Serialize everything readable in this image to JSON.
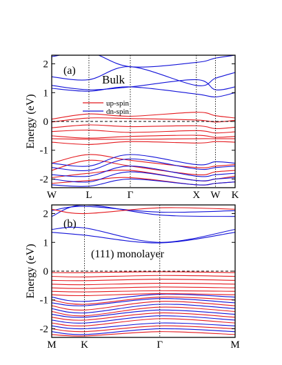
{
  "chart_data": [
    {
      "type": "line",
      "panel_label": "(a)",
      "title": "Bulk",
      "ylabel": "Energy (eV)",
      "ylim": [
        -2.3,
        2.3
      ],
      "yticks": [
        -2,
        -1,
        0,
        1,
        2
      ],
      "xlim": [
        0,
        7
      ],
      "kpoints": [
        {
          "label": "W",
          "x": 0
        },
        {
          "label": "L",
          "x": 1.42
        },
        {
          "label": "Γ",
          "x": 3.0
        },
        {
          "label": "X",
          "x": 5.52
        },
        {
          "label": "W",
          "x": 6.25
        },
        {
          "label": "K",
          "x": 7.0
        }
      ],
      "fermi_level": 0,
      "legend": {
        "placement": "upper-center",
        "entries": [
          {
            "name": "up-spin",
            "color": "#e4161b"
          },
          {
            "name": "dn-spin",
            "color": "#1010d8"
          }
        ]
      },
      "series": [
        {
          "name": "up-spin",
          "color": "#e4161b",
          "bands": [
            {
              "x": [
                0,
                1.42,
                3.0,
                5.52,
                6.25,
                7.0
              ],
              "y": [
                0.08,
                0.26,
                0.18,
                0.32,
                0.2,
                0.12
              ]
            },
            {
              "x": [
                0,
                1.42,
                3.0,
                5.52,
                6.25,
                7.0
              ],
              "y": [
                -0.02,
                0.12,
                0.1,
                0.05,
                -0.02,
                0.04
              ]
            },
            {
              "x": [
                0,
                1.42,
                3.0,
                5.52,
                6.25,
                7.0
              ],
              "y": [
                -0.22,
                -0.12,
                -0.18,
                -0.15,
                -0.25,
                -0.2
              ]
            },
            {
              "x": [
                0,
                1.42,
                3.0,
                5.52,
                6.25,
                7.0
              ],
              "y": [
                -0.35,
                -0.3,
                -0.38,
                -0.32,
                -0.4,
                -0.36
              ]
            },
            {
              "x": [
                0,
                1.42,
                3.0,
                5.52,
                6.25,
                7.0
              ],
              "y": [
                -0.5,
                -0.58,
                -0.52,
                -0.48,
                -0.55,
                -0.52
              ]
            },
            {
              "x": [
                0,
                1.42,
                3.0,
                5.52,
                6.25,
                7.0
              ],
              "y": [
                -0.6,
                -0.62,
                -0.62,
                -0.6,
                -0.6,
                -0.6
              ]
            },
            {
              "x": [
                0,
                1.42,
                3.0,
                5.52,
                6.25,
                7.0
              ],
              "y": [
                -0.72,
                -0.8,
                -0.7,
                -0.75,
                -0.7,
                -0.72
              ]
            },
            {
              "x": [
                0,
                1.42,
                3.0,
                5.52,
                6.25,
                7.0
              ],
              "y": [
                -1.45,
                -1.15,
                -1.35,
                -1.6,
                -1.55,
                -1.5
              ]
            },
            {
              "x": [
                0,
                1.42,
                3.0,
                5.52,
                6.25,
                7.0
              ],
              "y": [
                -1.7,
                -1.35,
                -1.55,
                -1.85,
                -1.75,
                -1.7
              ]
            },
            {
              "x": [
                0,
                1.42,
                3.0,
                5.52,
                6.25,
                7.0
              ],
              "y": [
                -1.95,
                -1.8,
                -1.7,
                -2.05,
                -2.0,
                -1.9
              ]
            },
            {
              "x": [
                0,
                1.42,
                3.0,
                5.52,
                6.25,
                7.0
              ],
              "y": [
                -2.15,
                -2.05,
                -1.95,
                -2.2,
                -2.15,
                -2.1
              ]
            }
          ]
        },
        {
          "name": "dn-spin",
          "color": "#1010d8",
          "bands": [
            {
              "x": [
                0,
                1.42,
                3.0,
                5.52,
                6.25,
                7.0
              ],
              "y": [
                2.25,
                2.4,
                1.9,
                2.05,
                2.2,
                2.3
              ]
            },
            {
              "x": [
                0,
                1.42,
                3.0,
                5.52,
                6.25,
                7.0
              ],
              "y": [
                1.55,
                1.45,
                1.9,
                1.25,
                1.5,
                1.7
              ]
            },
            {
              "x": [
                0,
                1.42,
                3.0,
                5.52,
                6.25,
                7.0
              ],
              "y": [
                1.25,
                1.1,
                1.2,
                1.45,
                1.1,
                1.2
              ]
            },
            {
              "x": [
                0,
                1.42,
                3.0,
                5.52,
                6.25,
                7.0
              ],
              "y": [
                1.15,
                1.05,
                1.2,
                0.95,
                0.85,
                1.0
              ]
            },
            {
              "x": [
                0,
                1.42,
                3.0,
                5.52,
                6.25,
                7.0
              ],
              "y": [
                -1.45,
                -1.55,
                -1.15,
                -1.5,
                -1.4,
                -1.45
              ]
            },
            {
              "x": [
                0,
                1.42,
                3.0,
                5.52,
                6.25,
                7.0
              ],
              "y": [
                -1.6,
                -1.7,
                -1.3,
                -1.65,
                -1.6,
                -1.55
              ]
            },
            {
              "x": [
                0,
                1.42,
                3.0,
                5.52,
                6.25,
                7.0
              ],
              "y": [
                -1.85,
                -1.9,
                -1.55,
                -1.9,
                -1.85,
                -1.8
              ]
            },
            {
              "x": [
                0,
                1.42,
                3.0,
                5.52,
                6.25,
                7.0
              ],
              "y": [
                -2.0,
                -2.1,
                -1.75,
                -2.05,
                -2.0,
                -1.95
              ]
            },
            {
              "x": [
                0,
                1.42,
                3.0,
                5.52,
                6.25,
                7.0
              ],
              "y": [
                -2.2,
                -2.25,
                -2.0,
                -2.2,
                -2.15,
                -2.1
              ]
            }
          ]
        }
      ]
    },
    {
      "type": "line",
      "panel_label": "(b)",
      "title": "(111) monolayer",
      "ylabel": "Energy (eV)",
      "ylim": [
        -2.3,
        2.3
      ],
      "yticks": [
        -2,
        -1,
        0,
        1,
        2
      ],
      "xlim": [
        0,
        5.6
      ],
      "kpoints": [
        {
          "label": "M",
          "x": 0
        },
        {
          "label": "K",
          "x": 1.0
        },
        {
          "label": "Γ",
          "x": 3.3
        },
        {
          "label": "M",
          "x": 5.6
        }
      ],
      "fermi_level": 0,
      "series": [
        {
          "name": "dn-spin",
          "color": "#1010d8",
          "bands": [
            {
              "x": [
                0,
                1.0,
                3.3,
                5.6
              ],
              "y": [
                1.9,
                2.3,
                1.95,
                1.9
              ]
            },
            {
              "x": [
                0,
                1.0,
                3.3,
                5.6
              ],
              "y": [
                2.1,
                2.25,
                2.05,
                2.1
              ]
            },
            {
              "x": [
                0,
                1.0,
                3.3,
                5.6
              ],
              "y": [
                1.45,
                1.5,
                1.0,
                1.45
              ]
            },
            {
              "x": [
                0,
                1.0,
                3.3,
                5.6
              ],
              "y": [
                1.35,
                1.25,
                0.98,
                1.35
              ]
            },
            {
              "x": [
                0,
                1.0,
                3.3,
                5.6
              ],
              "y": [
                -0.9,
                -1.05,
                -0.8,
                -0.9
              ]
            },
            {
              "x": [
                0,
                1.0,
                3.3,
                5.6
              ],
              "y": [
                -1.1,
                -1.2,
                -0.95,
                -1.1
              ]
            },
            {
              "x": [
                0,
                1.0,
                3.3,
                5.6
              ],
              "y": [
                -1.3,
                -1.45,
                -1.15,
                -1.3
              ]
            },
            {
              "x": [
                0,
                1.0,
                3.3,
                5.6
              ],
              "y": [
                -1.5,
                -1.6,
                -1.35,
                -1.5
              ]
            },
            {
              "x": [
                0,
                1.0,
                3.3,
                5.6
              ],
              "y": [
                -1.7,
                -1.8,
                -1.55,
                -1.7
              ]
            },
            {
              "x": [
                0,
                1.0,
                3.3,
                5.6
              ],
              "y": [
                -1.9,
                -2.0,
                -1.8,
                -1.9
              ]
            },
            {
              "x": [
                0,
                1.0,
                3.3,
                5.6
              ],
              "y": [
                -2.1,
                -2.2,
                -2.0,
                -2.1
              ]
            }
          ]
        },
        {
          "name": "up-spin",
          "color": "#e4161b",
          "bands": [
            {
              "x": [
                0,
                1.0,
                3.3,
                5.6
              ],
              "y": [
                -0.05,
                -0.05,
                -0.02,
                -0.05
              ]
            },
            {
              "x": [
                0,
                1.0,
                3.3,
                5.6
              ],
              "y": [
                -0.18,
                -0.2,
                -0.15,
                -0.18
              ]
            },
            {
              "x": [
                0,
                1.0,
                3.3,
                5.6
              ],
              "y": [
                -0.32,
                -0.33,
                -0.28,
                -0.32
              ]
            },
            {
              "x": [
                0,
                1.0,
                3.3,
                5.6
              ],
              "y": [
                -0.45,
                -0.47,
                -0.42,
                -0.45
              ]
            },
            {
              "x": [
                0,
                1.0,
                3.3,
                5.6
              ],
              "y": [
                -0.58,
                -0.6,
                -0.55,
                -0.58
              ]
            },
            {
              "x": [
                0,
                1.0,
                3.3,
                5.6
              ],
              "y": [
                -0.7,
                -0.72,
                -0.68,
                -0.7
              ]
            },
            {
              "x": [
                0,
                1.0,
                3.3,
                5.6
              ],
              "y": [
                -0.82,
                -0.85,
                -0.78,
                -0.82
              ]
            },
            {
              "x": [
                0,
                1.0,
                3.3,
                5.6
              ],
              "y": [
                -1.0,
                -1.15,
                -0.9,
                -1.0
              ]
            },
            {
              "x": [
                0,
                1.0,
                3.3,
                5.6
              ],
              "y": [
                -1.2,
                -1.35,
                -1.05,
                -1.2
              ]
            },
            {
              "x": [
                0,
                1.0,
                3.3,
                5.6
              ],
              "y": [
                -1.4,
                -1.55,
                -1.25,
                -1.4
              ]
            },
            {
              "x": [
                0,
                1.0,
                3.3,
                5.6
              ],
              "y": [
                -1.6,
                -1.7,
                -1.45,
                -1.6
              ]
            },
            {
              "x": [
                0,
                1.0,
                3.3,
                5.6
              ],
              "y": [
                -1.8,
                -1.9,
                -1.65,
                -1.8
              ]
            },
            {
              "x": [
                0,
                1.0,
                3.3,
                5.6
              ],
              "y": [
                -2.0,
                -2.1,
                -1.9,
                -2.0
              ]
            },
            {
              "x": [
                0,
                1.0,
                3.3,
                5.6
              ],
              "y": [
                -2.2,
                -2.25,
                -2.1,
                -2.2
              ]
            },
            {
              "x": [
                0,
                1.0,
                3.3,
                5.6
              ],
              "y": [
                2.15,
                2.0,
                2.2,
                2.15
              ]
            }
          ]
        }
      ]
    }
  ]
}
